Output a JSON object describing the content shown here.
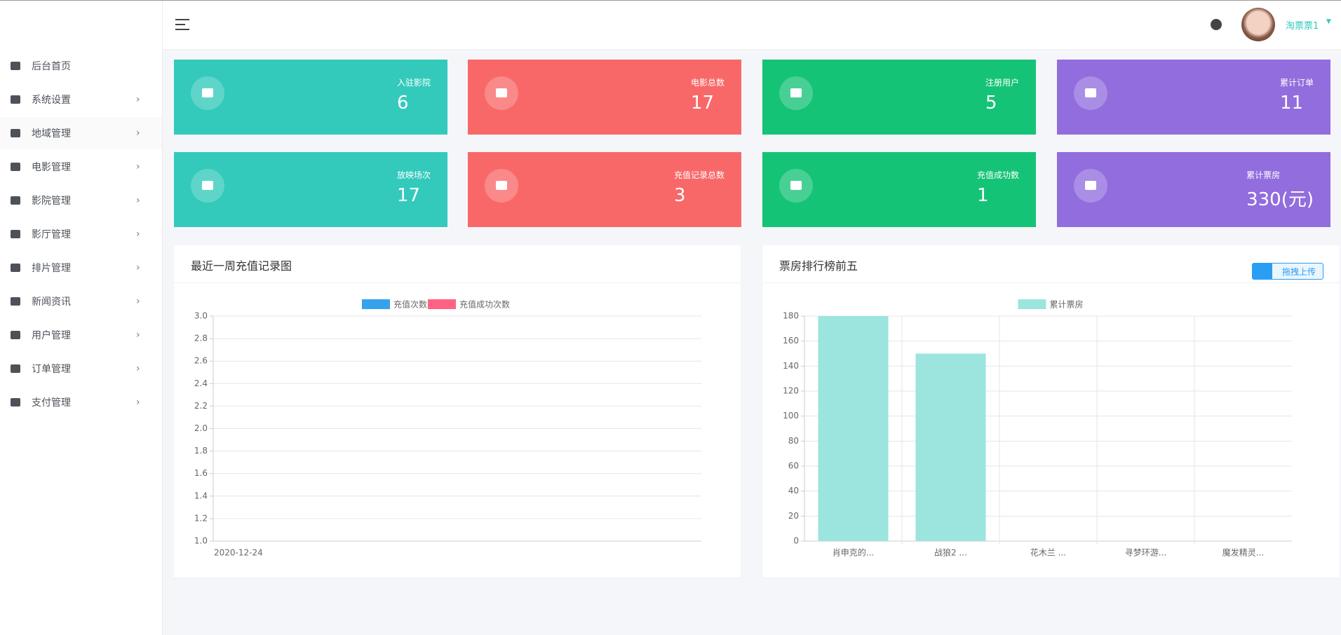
{
  "header": {
    "user": "淘票票1"
  },
  "sidebar": [
    "后台首页",
    "系统设置",
    "地域管理",
    "电影管理",
    "影院管理",
    "影厅管理",
    "排片管理",
    "新闻资讯",
    "用户管理",
    "订单管理",
    "支付管理"
  ],
  "cards": [
    {
      "label": "入驻影院",
      "value": 6,
      "color": "#33cabb"
    },
    {
      "label": "电影总数",
      "value": 17,
      "color": "#f96868"
    },
    {
      "label": "注册用户",
      "value": 5,
      "color": "#15c377"
    },
    {
      "label": "累计订单",
      "value": 11,
      "color": "#926dde"
    },
    {
      "label": "放映场次",
      "value": 17,
      "color": "#33cabb"
    },
    {
      "label": "充值记录总数",
      "value": 3,
      "color": "#f96868"
    },
    {
      "label": "充值成功数",
      "value": 1,
      "color": "#15c377"
    },
    {
      "label": "累计票房",
      "value": "330(元)",
      "color": "#926dde"
    }
  ],
  "upload_button": "拖拽上传",
  "chart_data": [
    {
      "type": "line",
      "title": "最近一周充值记录图",
      "categories": [
        "2020-12-24"
      ],
      "series": [
        {
          "name": "充值次数",
          "color": "#36a2eb",
          "values": [
            null
          ]
        },
        {
          "name": "充值成功次数",
          "color": "#ff6384",
          "values": [
            null
          ]
        }
      ],
      "ylim": [
        1,
        3
      ],
      "yticks": [
        {
          "value": 1,
          "label": "1.0"
        },
        1.2,
        1.4,
        1.6,
        1.8,
        {
          "value": 2,
          "label": "2.0"
        },
        2.2,
        2.4,
        2.6,
        2.8,
        {
          "value": 3,
          "label": "3.0"
        }
      ],
      "grid": true
    },
    {
      "type": "bar",
      "title": "票房排行榜前五",
      "categories": [
        "肖申克的...",
        "战狼2 ...",
        "花木兰 ...",
        "寻梦环游...",
        "魔发精灵..."
      ],
      "series": [
        {
          "name": "累计票房",
          "color": "#9be5de",
          "values": [
            180,
            150,
            0,
            0,
            0
          ]
        }
      ],
      "ylim": [
        0,
        180
      ],
      "yticks": [
        0,
        20,
        40,
        60,
        80,
        100,
        120,
        140,
        160,
        180
      ],
      "grid": true
    }
  ]
}
